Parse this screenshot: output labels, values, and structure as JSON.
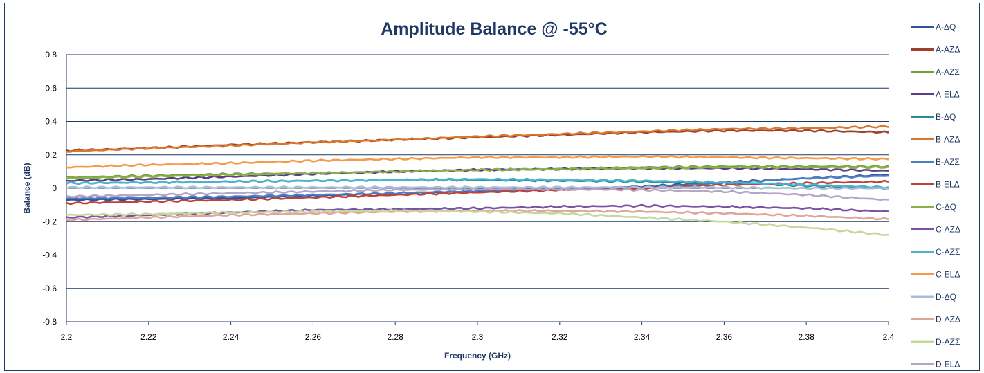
{
  "chart_data": {
    "type": "line",
    "title": "Amplitude Balance @ -55°C",
    "xlabel": "Frequency (GHz)",
    "ylabel": "Balance (dB)",
    "xlim": [
      2.2,
      2.4
    ],
    "ylim": [
      -0.8,
      0.8
    ],
    "x_ticks": [
      "2.2",
      "2.22",
      "2.24",
      "2.26",
      "2.28",
      "2.3",
      "2.32",
      "2.34",
      "2.36",
      "2.38",
      "2.4"
    ],
    "y_ticks": [
      "0.8",
      "0.6",
      "0.4",
      "0.2",
      "0",
      "-0.2",
      "-0.4",
      "-0.6",
      "-0.8"
    ],
    "grid": "horizontal major",
    "legend_position": "right",
    "x": [
      2.2,
      2.22,
      2.24,
      2.26,
      2.28,
      2.3,
      2.32,
      2.34,
      2.36,
      2.38,
      2.4
    ],
    "series": [
      {
        "name": "A-ΔQ",
        "color": "#2f5597",
        "values": [
          -0.07,
          -0.065,
          -0.06,
          -0.045,
          -0.03,
          -0.02,
          -0.005,
          0.01,
          0.035,
          0.06,
          0.08
        ]
      },
      {
        "name": "A-AZΔ",
        "color": "#a0402c",
        "values": [
          0.225,
          0.24,
          0.26,
          0.275,
          0.29,
          0.305,
          0.32,
          0.335,
          0.345,
          0.345,
          0.335
        ]
      },
      {
        "name": "A-AZΣ",
        "color": "#70a03a",
        "values": [
          0.065,
          0.075,
          0.085,
          0.09,
          0.1,
          0.11,
          0.115,
          0.125,
          0.13,
          0.13,
          0.13
        ]
      },
      {
        "name": "A-ELΔ",
        "color": "#5b3c88",
        "values": [
          0.045,
          0.055,
          0.07,
          0.085,
          0.1,
          0.11,
          0.115,
          0.12,
          0.12,
          0.115,
          0.105
        ]
      },
      {
        "name": "B-ΔQ",
        "color": "#2a8a9a",
        "values": [
          0.03,
          0.035,
          0.04,
          0.045,
          0.05,
          0.05,
          0.045,
          0.04,
          0.03,
          0.015,
          0.0
        ]
      },
      {
        "name": "B-AZΔ",
        "color": "#d8782c",
        "values": [
          0.22,
          0.24,
          0.255,
          0.275,
          0.29,
          0.31,
          0.325,
          0.34,
          0.355,
          0.36,
          0.37
        ]
      },
      {
        "name": "B-AZΣ",
        "color": "#4a7fc4",
        "values": [
          -0.06,
          -0.055,
          -0.05,
          -0.04,
          -0.03,
          -0.015,
          -0.005,
          0.005,
          0.03,
          0.06,
          0.075
        ]
      },
      {
        "name": "B-ELΔ",
        "color": "#c0403a",
        "values": [
          -0.09,
          -0.08,
          -0.07,
          -0.055,
          -0.04,
          -0.025,
          -0.01,
          0.0,
          0.02,
          0.03,
          0.04
        ]
      },
      {
        "name": "C-ΔQ",
        "color": "#8ab04a",
        "values": [
          0.06,
          0.07,
          0.08,
          0.09,
          0.1,
          0.11,
          0.115,
          0.12,
          0.125,
          0.125,
          0.125
        ]
      },
      {
        "name": "C-AZΔ",
        "color": "#7a52a4",
        "values": [
          -0.175,
          -0.16,
          -0.145,
          -0.13,
          -0.125,
          -0.12,
          -0.11,
          -0.105,
          -0.11,
          -0.12,
          -0.14
        ]
      },
      {
        "name": "C-AZΣ",
        "color": "#4bb4cc",
        "values": [
          0.03,
          0.035,
          0.04,
          0.045,
          0.05,
          0.055,
          0.05,
          0.045,
          0.035,
          0.02,
          0.005
        ]
      },
      {
        "name": "C-ELΔ",
        "color": "#f59a48",
        "values": [
          0.125,
          0.14,
          0.15,
          0.165,
          0.175,
          0.185,
          0.185,
          0.19,
          0.185,
          0.18,
          0.175
        ]
      },
      {
        "name": "D-ΔQ",
        "color": "#a9bcd8",
        "values": [
          0.005,
          0.005,
          0.005,
          0.005,
          0.005,
          0.005,
          0.005,
          0.005,
          0.005,
          0.0,
          0.0
        ]
      },
      {
        "name": "D-AZΔ",
        "color": "#e0a49a",
        "values": [
          -0.19,
          -0.175,
          -0.16,
          -0.15,
          -0.14,
          -0.135,
          -0.135,
          -0.14,
          -0.15,
          -0.165,
          -0.185
        ]
      },
      {
        "name": "D-AZΣ",
        "color": "#c4d89c",
        "values": [
          -0.16,
          -0.155,
          -0.145,
          -0.14,
          -0.135,
          -0.14,
          -0.15,
          -0.175,
          -0.2,
          -0.235,
          -0.28
        ]
      },
      {
        "name": "D-ELΔ",
        "color": "#b4a4c8",
        "values": [
          -0.05,
          -0.04,
          -0.03,
          -0.02,
          -0.01,
          -0.005,
          -0.005,
          -0.01,
          -0.02,
          -0.04,
          -0.07
        ]
      }
    ]
  }
}
